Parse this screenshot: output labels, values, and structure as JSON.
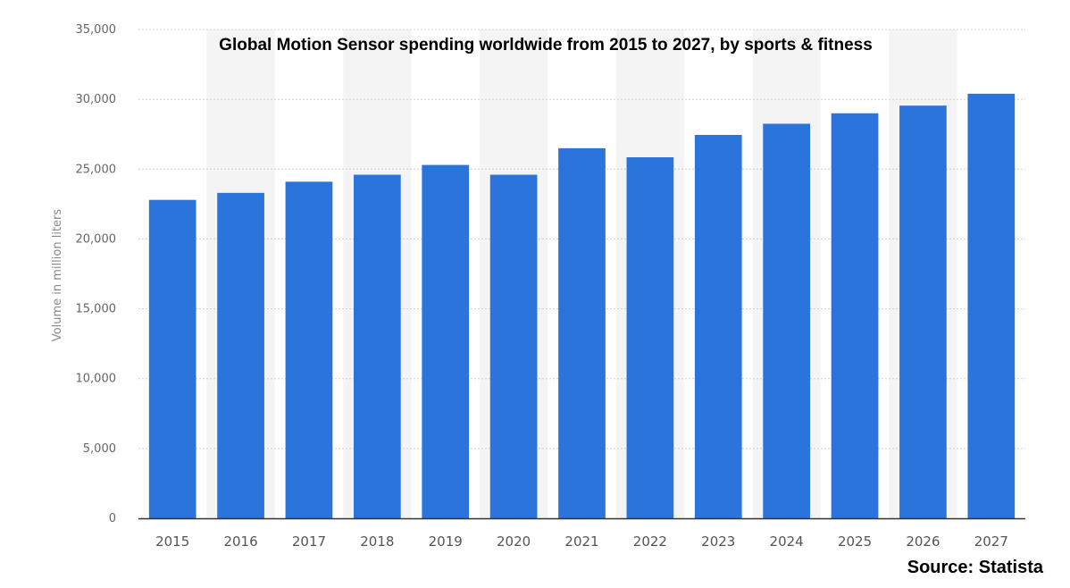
{
  "chart_data": {
    "type": "bar",
    "title": "Global Motion Sensor spending worldwide from 2015 to 2027, by sports & fitness",
    "xlabel": "",
    "ylabel": "Volume in million liters",
    "categories": [
      "2015",
      "2016",
      "2017",
      "2018",
      "2019",
      "2020",
      "2021",
      "2022",
      "2023",
      "2024",
      "2025",
      "2026",
      "2027"
    ],
    "values": [
      22800,
      23300,
      24100,
      24600,
      25300,
      24600,
      26500,
      25850,
      27450,
      28250,
      29000,
      29550,
      30400
    ],
    "ylim": [
      0,
      35000
    ],
    "yticks": [
      "0",
      "5,000",
      "10,000",
      "15,000",
      "20,000",
      "25,000",
      "30,000",
      "35,000"
    ],
    "ytick_values": [
      0,
      5000,
      10000,
      15000,
      20000,
      25000,
      30000,
      35000
    ],
    "grid": true,
    "source": "Source: Statista",
    "colors": {
      "bar": "#2b74db",
      "band": "#f4f4f4",
      "grid": "#cfcfcf",
      "axis": "#333333"
    }
  }
}
